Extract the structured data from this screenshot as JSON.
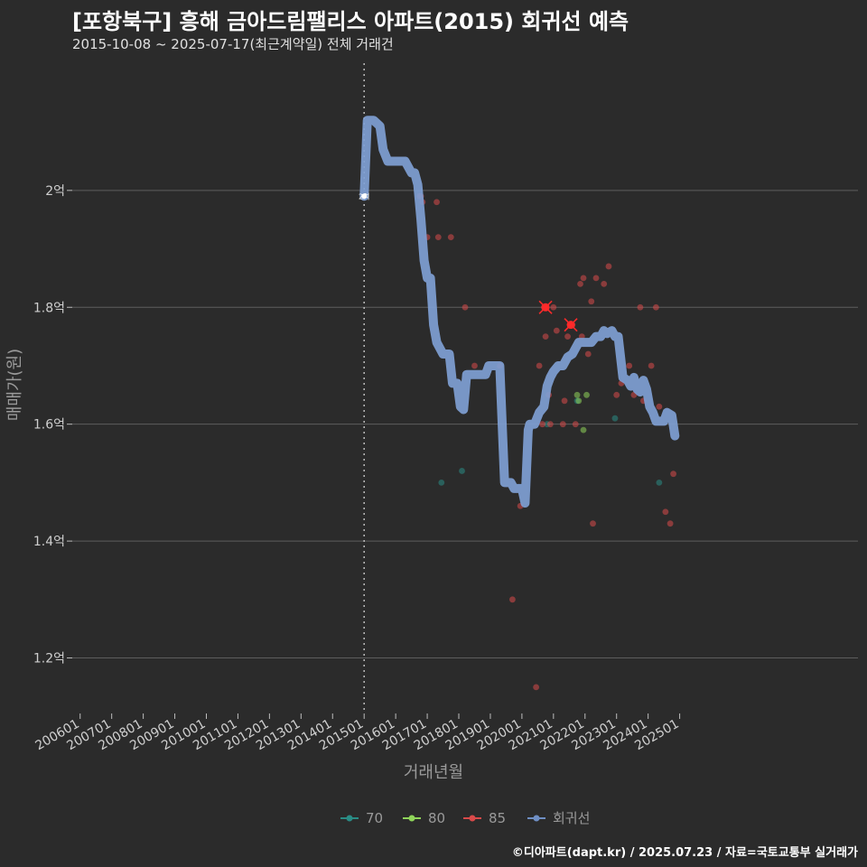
{
  "title": "[포항북구] 흥해 금아드림팰리스 아파트(2015) 회귀선 예측",
  "subtitle": "2015-10-08 ~ 2025-07-17(최근계약일) 전체 거래건",
  "caption": "©디아파트(dapt.kr) / 2025.07.23 / 자료=국토교통부 실거래가",
  "marker_label": "2억",
  "chart_data": {
    "type": "scatter",
    "xlabel": "거래년월",
    "ylabel": "매매가(원)",
    "xlim": [
      2005.75,
      2030.65
    ],
    "ylim": [
      1.105,
      2.23
    ],
    "yticks": [
      {
        "value": 1.2,
        "label": "1.2억"
      },
      {
        "value": 1.4,
        "label": "1.4억"
      },
      {
        "value": 1.6,
        "label": "1.6억"
      },
      {
        "value": 1.8,
        "label": "1.8억"
      },
      {
        "value": 2.0,
        "label": "2억"
      }
    ],
    "xticks": [
      {
        "value": 2006.0,
        "label": "200601"
      },
      {
        "value": 2007.0,
        "label": "200701"
      },
      {
        "value": 2008.0,
        "label": "200801"
      },
      {
        "value": 2009.0,
        "label": "200901"
      },
      {
        "value": 2010.0,
        "label": "201001"
      },
      {
        "value": 2011.0,
        "label": "201101"
      },
      {
        "value": 2012.0,
        "label": "201201"
      },
      {
        "value": 2013.0,
        "label": "201301"
      },
      {
        "value": 2014.0,
        "label": "201401"
      },
      {
        "value": 2015.0,
        "label": "201501"
      },
      {
        "value": 2016.0,
        "label": "201601"
      },
      {
        "value": 2017.0,
        "label": "201701"
      },
      {
        "value": 2018.0,
        "label": "201801"
      },
      {
        "value": 2019.0,
        "label": "201901"
      },
      {
        "value": 2020.0,
        "label": "202001"
      },
      {
        "value": 2021.0,
        "label": "202101"
      },
      {
        "value": 2022.0,
        "label": "202201"
      },
      {
        "value": 2023.0,
        "label": "202301"
      },
      {
        "value": 2024.0,
        "label": "202401"
      },
      {
        "value": 2025.0,
        "label": "202501"
      }
    ],
    "vline_x": 2015.0,
    "grid": true,
    "legend_position": "bottom",
    "legend": [
      {
        "name": "70",
        "color": "#2a8c85"
      },
      {
        "name": "80",
        "color": "#8fd45a"
      },
      {
        "name": "85",
        "color": "#d94a4a"
      },
      {
        "name": "회귀선",
        "color": "#6f8fc4"
      }
    ],
    "series": [
      {
        "name": "70",
        "color": "#2a8c85",
        "points": [
          [
            2017.45,
            1.5
          ],
          [
            2018.1,
            1.52
          ],
          [
            2020.8,
            1.6
          ],
          [
            2021.75,
            1.64
          ],
          [
            2022.95,
            1.61
          ],
          [
            2024.35,
            1.5
          ]
        ]
      },
      {
        "name": "80",
        "color": "#8fd45a",
        "points": [
          [
            2021.75,
            1.65
          ],
          [
            2021.8,
            1.64
          ],
          [
            2021.95,
            1.59
          ],
          [
            2022.05,
            1.65
          ]
        ]
      },
      {
        "name": "85",
        "color": "#d94a4a",
        "points": [
          [
            2016.75,
            1.99
          ],
          [
            2016.85,
            1.98
          ],
          [
            2016.8,
            1.99
          ],
          [
            2017.0,
            1.92
          ],
          [
            2017.3,
            1.98
          ],
          [
            2017.35,
            1.92
          ],
          [
            2017.75,
            1.92
          ],
          [
            2018.2,
            1.8
          ],
          [
            2018.5,
            1.7
          ],
          [
            2019.3,
            1.7
          ],
          [
            2019.7,
            1.3
          ],
          [
            2019.95,
            1.46
          ],
          [
            2020.45,
            1.15
          ],
          [
            2020.55,
            1.7
          ],
          [
            2020.65,
            1.6
          ],
          [
            2020.7,
            1.8
          ],
          [
            2020.75,
            1.75
          ],
          [
            2020.85,
            1.65
          ],
          [
            2020.9,
            1.6
          ],
          [
            2021.0,
            1.8
          ],
          [
            2021.1,
            1.76
          ],
          [
            2021.3,
            1.6
          ],
          [
            2021.35,
            1.64
          ],
          [
            2021.45,
            1.75
          ],
          [
            2021.6,
            1.77
          ],
          [
            2021.7,
            1.6
          ],
          [
            2021.85,
            1.84
          ],
          [
            2021.9,
            1.75
          ],
          [
            2021.95,
            1.85
          ],
          [
            2022.1,
            1.72
          ],
          [
            2022.2,
            1.81
          ],
          [
            2022.25,
            1.43
          ],
          [
            2022.35,
            1.85
          ],
          [
            2022.6,
            1.84
          ],
          [
            2022.75,
            1.87
          ],
          [
            2023.0,
            1.65
          ],
          [
            2023.15,
            1.67
          ],
          [
            2023.4,
            1.7
          ],
          [
            2023.55,
            1.65
          ],
          [
            2023.75,
            1.8
          ],
          [
            2023.85,
            1.64
          ],
          [
            2024.1,
            1.7
          ],
          [
            2024.25,
            1.8
          ],
          [
            2024.35,
            1.63
          ],
          [
            2024.55,
            1.45
          ],
          [
            2024.7,
            1.43
          ],
          [
            2024.8,
            1.515
          ]
        ]
      }
    ],
    "highlight_points": [
      [
        2020.75,
        1.8
      ],
      [
        2021.55,
        1.77
      ]
    ],
    "regression": {
      "name": "회귀선",
      "color": "#7f9fd4",
      "points": [
        [
          2015.0,
          1.99
        ],
        [
          2015.1,
          2.12
        ],
        [
          2015.3,
          2.12
        ],
        [
          2015.5,
          2.11
        ],
        [
          2015.6,
          2.07
        ],
        [
          2015.75,
          2.05
        ],
        [
          2016.3,
          2.05
        ],
        [
          2016.5,
          2.03
        ],
        [
          2016.6,
          2.03
        ],
        [
          2016.7,
          2.01
        ],
        [
          2016.8,
          1.95
        ],
        [
          2016.9,
          1.88
        ],
        [
          2017.0,
          1.85
        ],
        [
          2017.1,
          1.85
        ],
        [
          2017.2,
          1.77
        ],
        [
          2017.3,
          1.74
        ],
        [
          2017.5,
          1.72
        ],
        [
          2017.7,
          1.72
        ],
        [
          2017.8,
          1.67
        ],
        [
          2017.95,
          1.67
        ],
        [
          2018.05,
          1.63
        ],
        [
          2018.15,
          1.625
        ],
        [
          2018.25,
          1.685
        ],
        [
          2018.85,
          1.685
        ],
        [
          2018.95,
          1.7
        ],
        [
          2019.3,
          1.7
        ],
        [
          2019.45,
          1.5
        ],
        [
          2019.65,
          1.5
        ],
        [
          2019.75,
          1.49
        ],
        [
          2020.0,
          1.49
        ],
        [
          2020.1,
          1.465
        ],
        [
          2020.2,
          1.59
        ],
        [
          2020.25,
          1.6
        ],
        [
          2020.4,
          1.6
        ],
        [
          2020.55,
          1.62
        ],
        [
          2020.7,
          1.63
        ],
        [
          2020.8,
          1.665
        ],
        [
          2020.9,
          1.68
        ],
        [
          2021.0,
          1.69
        ],
        [
          2021.15,
          1.7
        ],
        [
          2021.3,
          1.7
        ],
        [
          2021.45,
          1.715
        ],
        [
          2021.6,
          1.72
        ],
        [
          2021.8,
          1.74
        ],
        [
          2022.0,
          1.74
        ],
        [
          2022.2,
          1.74
        ],
        [
          2022.35,
          1.75
        ],
        [
          2022.5,
          1.75
        ],
        [
          2022.6,
          1.76
        ],
        [
          2022.7,
          1.755
        ],
        [
          2022.85,
          1.76
        ],
        [
          2022.95,
          1.75
        ],
        [
          2023.05,
          1.75
        ],
        [
          2023.2,
          1.68
        ],
        [
          2023.35,
          1.675
        ],
        [
          2023.45,
          1.665
        ],
        [
          2023.55,
          1.68
        ],
        [
          2023.65,
          1.66
        ],
        [
          2023.75,
          1.655
        ],
        [
          2023.85,
          1.675
        ],
        [
          2023.95,
          1.66
        ],
        [
          2024.05,
          1.63
        ],
        [
          2024.15,
          1.62
        ],
        [
          2024.25,
          1.605
        ],
        [
          2024.5,
          1.605
        ],
        [
          2024.6,
          1.62
        ],
        [
          2024.75,
          1.615
        ],
        [
          2024.85,
          1.58
        ]
      ]
    }
  }
}
